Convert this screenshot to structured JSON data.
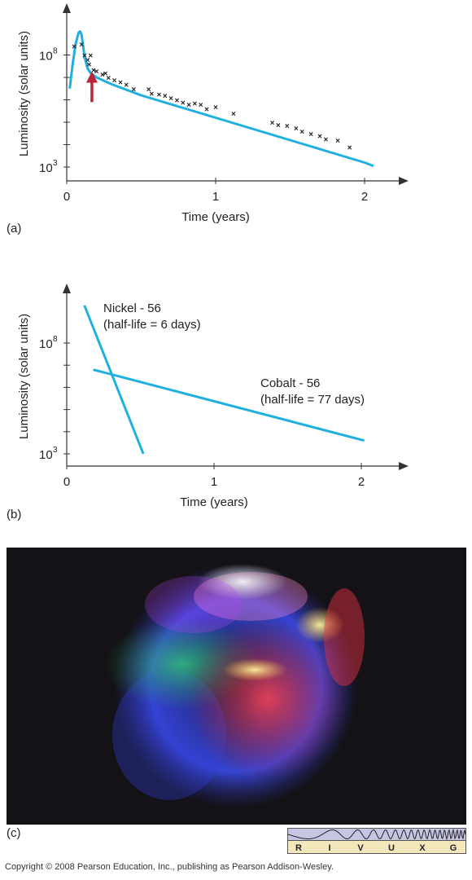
{
  "figure": {
    "panel_a_label": "(a)",
    "panel_b_label": "(b)",
    "panel_c_label": "(c)",
    "copyright": "Copyright © 2008 Pearson Education, Inc., publishing as Pearson Addison-Wesley.",
    "spectrum_bands": [
      "R",
      "I",
      "V",
      "U",
      "X",
      "G"
    ],
    "spectrum_highlighted": [
      "I",
      "V",
      "X"
    ],
    "colors": {
      "curve": "#1fb0e0",
      "marker": "#333333",
      "arrow": "#b8253a",
      "highlight": "#cc2222",
      "spectrum_bg": "#f3e7bc",
      "wave_bg": "#c7c6e2"
    },
    "photo": {
      "subject": "supernova-remnant-image",
      "colors": [
        "#2233cc",
        "#3a5cff",
        "#22cc66",
        "#ff3344",
        "#ffee88",
        "#cc44ff"
      ]
    }
  },
  "chart_data": [
    {
      "type": "line",
      "panel": "(a)",
      "xlabel": "Time (years)",
      "ylabel": "Luminosity (solar units)",
      "xlim": [
        0,
        2.2
      ],
      "ylim_log10": [
        2.5,
        9.8
      ],
      "log_y": true,
      "x_ticks": [
        0,
        1,
        2
      ],
      "x_tick_labels": [
        "0",
        "1",
        "2"
      ],
      "y_ticks_log10": [
        3,
        4,
        5,
        6,
        7,
        8
      ],
      "y_tick_labels": {
        "3": "10",
        "8": "10"
      },
      "y_tick_label_exponents": {
        "3": "3",
        "8": "8"
      },
      "series": [
        {
          "kind": "model-curve",
          "x": [
            0.02,
            0.04,
            0.06,
            0.08,
            0.09,
            0.1,
            0.12,
            0.14,
            0.16,
            0.2,
            0.25,
            0.3,
            0.4,
            0.5,
            0.6,
            0.8,
            1.0,
            1.2,
            1.4,
            1.6,
            1.8,
            2.0,
            2.06
          ],
          "y_log10": [
            6.5,
            7.6,
            8.5,
            9.0,
            9.05,
            8.9,
            7.9,
            7.4,
            7.2,
            7.0,
            6.85,
            6.7,
            6.45,
            6.2,
            6.0,
            5.6,
            5.2,
            4.8,
            4.4,
            4.0,
            3.6,
            3.2,
            3.05
          ]
        },
        {
          "kind": "observations",
          "x": [
            0.05,
            0.1,
            0.12,
            0.14,
            0.15,
            0.16,
            0.18,
            0.2,
            0.24,
            0.26,
            0.28,
            0.32,
            0.36,
            0.4,
            0.45,
            0.55,
            0.57,
            0.62,
            0.66,
            0.7,
            0.74,
            0.78,
            0.82,
            0.86,
            0.9,
            0.94,
            1.0,
            1.12,
            1.38,
            1.42,
            1.48,
            1.54,
            1.58,
            1.64,
            1.7,
            1.74,
            1.82,
            1.9
          ],
          "y_log10": [
            8.4,
            8.5,
            8.0,
            7.8,
            7.6,
            8.0,
            7.35,
            7.3,
            7.15,
            7.2,
            7.0,
            6.9,
            6.8,
            6.7,
            6.5,
            6.5,
            6.3,
            6.25,
            6.2,
            6.1,
            6.0,
            5.9,
            5.8,
            5.85,
            5.8,
            5.6,
            5.7,
            5.4,
            5.0,
            4.9,
            4.85,
            4.75,
            4.6,
            4.5,
            4.4,
            4.25,
            4.2,
            3.9
          ]
        }
      ],
      "annotation": {
        "kind": "arrow",
        "x": 0.18,
        "y_log10_from": 5.9,
        "y_log10_to": 7.2
      }
    },
    {
      "type": "line",
      "panel": "(b)",
      "xlabel": "Time (years)",
      "ylabel": "Luminosity (solar units)",
      "xlim": [
        0,
        2.2
      ],
      "ylim_log10": [
        2.5,
        9.8
      ],
      "log_y": true,
      "x_ticks": [
        0,
        1,
        2
      ],
      "x_tick_labels": [
        "0",
        "1",
        "2"
      ],
      "y_ticks_log10": [
        3,
        4,
        5,
        6,
        7,
        8
      ],
      "y_tick_labels": {
        "3": "10",
        "8": "10"
      },
      "y_tick_label_exponents": {
        "3": "3",
        "8": "8"
      },
      "series": [
        {
          "kind": "decay-line",
          "x": [
            0.12,
            0.52
          ],
          "y_log10": [
            9.7,
            3.0
          ],
          "annotation_lines": [
            "Nickel - 56",
            "(half-life = 6 days)"
          ]
        },
        {
          "kind": "decay-line",
          "x": [
            0.18,
            2.02
          ],
          "y_log10": [
            6.8,
            3.6
          ],
          "annotation_lines": [
            "Cobalt - 56",
            "(half-life = 77 days)"
          ]
        }
      ]
    }
  ]
}
